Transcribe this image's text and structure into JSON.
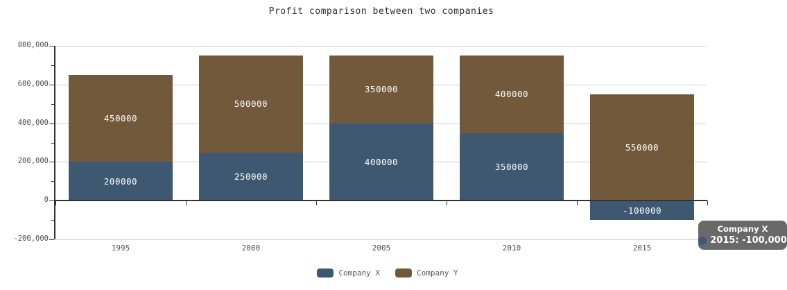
{
  "title": "Profit comparison between two companies",
  "chart_data": {
    "type": "bar",
    "stacked": true,
    "title": "Profit comparison between two companies",
    "categories": [
      "1995",
      "2000",
      "2005",
      "2010",
      "2015"
    ],
    "series": [
      {
        "name": "Company X",
        "color": "#3e5871",
        "values": [
          200000,
          250000,
          400000,
          350000,
          -100000
        ]
      },
      {
        "name": "Company Y",
        "color": "#72593c",
        "values": [
          450000,
          500000,
          350000,
          400000,
          550000
        ]
      }
    ],
    "ylim": [
      -200000,
      800000
    ],
    "y_ticks": [
      {
        "value": 800000,
        "label": "800,000"
      },
      {
        "value": 600000,
        "label": "600,000"
      },
      {
        "value": 400000,
        "label": "400,000"
      },
      {
        "value": 200000,
        "label": "200,000"
      },
      {
        "value": 0,
        "label": "0"
      },
      {
        "value": -200000,
        "label": "-200,000"
      }
    ],
    "y_minor_step": 100000,
    "grid": "horizontal",
    "legend_position": "bottom",
    "bar_label_color": "#ffffff"
  },
  "legend": {
    "items": [
      {
        "label": "Company X",
        "color": "#3e5871"
      },
      {
        "label": "Company Y",
        "color": "#72593c"
      }
    ]
  },
  "tooltip": {
    "title": "Company X",
    "text": "2015: -100,000",
    "marker_color": "#3e5871",
    "background": "#696969"
  }
}
